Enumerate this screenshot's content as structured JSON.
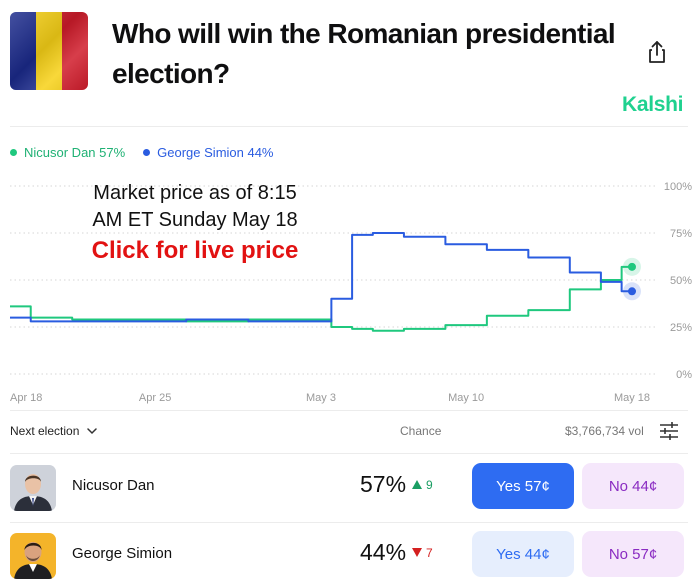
{
  "header": {
    "title": "Who will win the Romanian presidential election?",
    "brand": "Kalshi",
    "flag_colors": [
      "#1b2a8c",
      "#f7d117",
      "#d01c2b"
    ],
    "share_icon": "share-icon"
  },
  "legend": [
    {
      "label": "Nicusor Dan 57%",
      "color": "#1fc87e"
    },
    {
      "label": "George Simion 44%",
      "color": "#2a5ce0"
    }
  ],
  "overlay": {
    "line1": "Market price as of 8:15",
    "line2": "AM ET Sunday May 18",
    "cta": "Click for live price"
  },
  "chart_data": {
    "type": "line",
    "x_ticks": [
      "Apr 18",
      "Apr 25",
      "May 3",
      "May 10",
      "May 18"
    ],
    "y_ticks": [
      "100%",
      "75%",
      "50%",
      "25%",
      "0%"
    ],
    "ylim": [
      0,
      100
    ],
    "series": [
      {
        "name": "Nicusor Dan",
        "color": "#1fc87e",
        "x": [
          "Apr 18",
          "Apr 20",
          "Apr 22",
          "Apr 25",
          "Apr 28",
          "May 1",
          "May 3",
          "May 4",
          "May 5",
          "May 6",
          "May 8",
          "May 10",
          "May 12",
          "May 14",
          "May 16",
          "May 17",
          "May 18"
        ],
        "values": [
          36,
          30,
          29,
          29,
          28,
          29,
          29,
          25,
          24,
          23,
          24,
          26,
          31,
          34,
          45,
          50,
          57
        ]
      },
      {
        "name": "George Simion",
        "color": "#2a5ce0",
        "x": [
          "Apr 18",
          "Apr 20",
          "Apr 22",
          "Apr 25",
          "Apr 28",
          "May 1",
          "May 3",
          "May 4",
          "May 5",
          "May 6",
          "May 8",
          "May 10",
          "May 12",
          "May 14",
          "May 16",
          "May 17",
          "May 18"
        ],
        "values": [
          30,
          28,
          28,
          28,
          29,
          28,
          28,
          40,
          74,
          75,
          73,
          69,
          66,
          62,
          54,
          49,
          44
        ]
      }
    ]
  },
  "toolbar": {
    "next_election": "Next election",
    "chance_label": "Chance",
    "volume": "$3,766,734 vol"
  },
  "candidates": [
    {
      "name": "Nicusor Dan",
      "chance": "57%",
      "delta": "9",
      "delta_dir": "up",
      "delta_color": "#1a9e63",
      "yes_label": "Yes 57¢",
      "no_label": "No 44¢"
    },
    {
      "name": "George Simion",
      "chance": "44%",
      "delta": "7",
      "delta_dir": "down",
      "delta_color": "#d42020",
      "yes_label": "Yes 44¢",
      "no_label": "No 57¢"
    }
  ]
}
